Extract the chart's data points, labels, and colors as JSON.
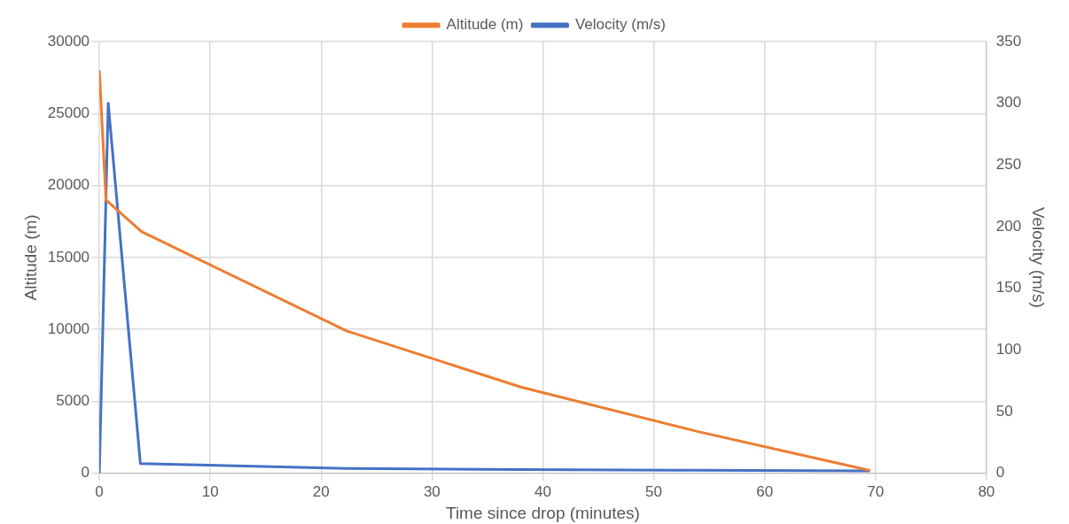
{
  "chart_data": {
    "type": "line",
    "xlabel": "Time since drop (minutes)",
    "ylabel": "Altitude (m)",
    "y2label": "Velocity (m/s)",
    "xlim": [
      0,
      80
    ],
    "xticks": [
      0,
      10,
      20,
      30,
      40,
      50,
      60,
      70,
      80
    ],
    "ylim": [
      0,
      30000
    ],
    "yticks": [
      0,
      5000,
      10000,
      15000,
      20000,
      25000,
      30000
    ],
    "y2lim": [
      0,
      350
    ],
    "y2ticks": [
      0,
      50,
      100,
      150,
      200,
      250,
      300,
      350
    ],
    "grid": true,
    "legend": "top",
    "marker": "none",
    "line_style": "solid",
    "series": [
      {
        "name": "Altitude (m)",
        "color": "#ed7d31",
        "x": [
          0,
          0.6,
          3.8,
          22.3,
          38,
          54,
          69.5
        ],
        "values": [
          28000,
          19000,
          16800,
          9900,
          6000,
          2900,
          200
        ]
      },
      {
        "name": "Velocity (m/s)",
        "color": "#4472c4",
        "axis": "y2",
        "x": [
          0,
          0.8,
          3.7,
          22.3,
          38,
          54,
          69.5
        ],
        "values": [
          0,
          300,
          8,
          4,
          3,
          2.5,
          2
        ]
      }
    ]
  }
}
